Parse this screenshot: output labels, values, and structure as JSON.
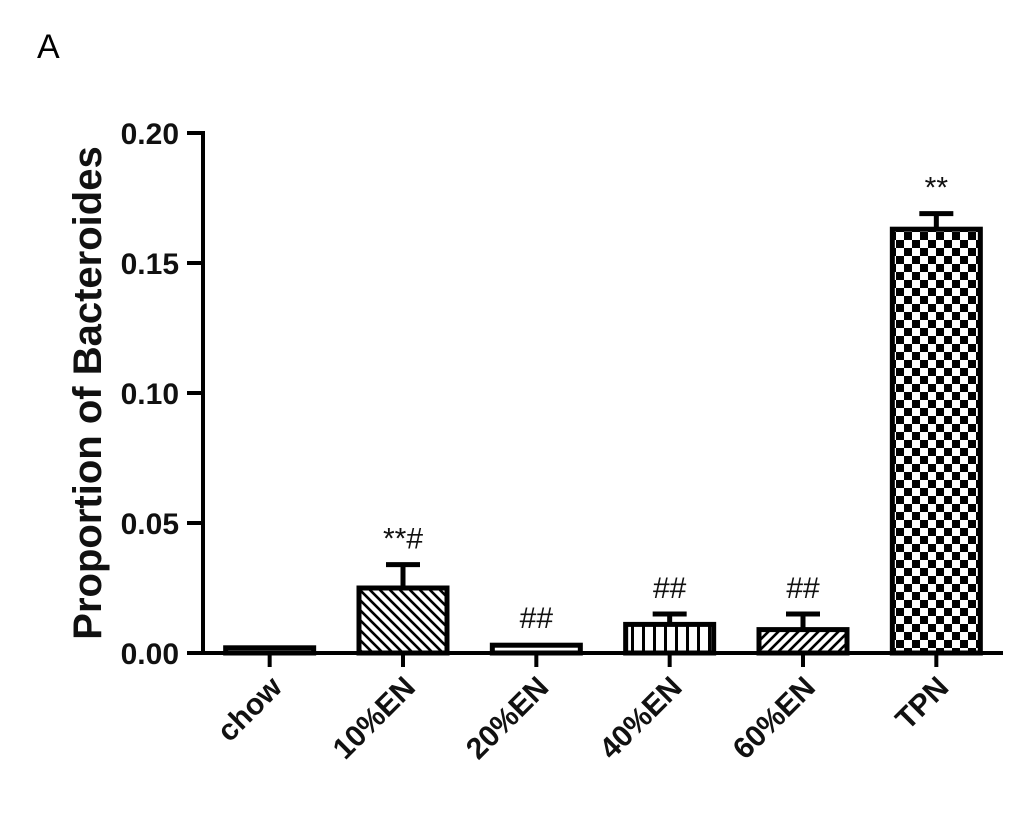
{
  "panel_label": "A",
  "chart_data": {
    "type": "bar",
    "title": "",
    "xlabel": "",
    "ylabel": "Proportion of Bacteroides",
    "ylim": [
      0,
      0.2
    ],
    "yticks": [
      "0.00",
      "0.05",
      "0.10",
      "0.15",
      "0.20"
    ],
    "categories": [
      "chow",
      "10%EN",
      "20%EN",
      "40%EN",
      "60%EN",
      "TPN"
    ],
    "values": [
      0.002,
      0.025,
      0.003,
      0.011,
      0.009,
      0.163
    ],
    "error": [
      0.0005,
      0.009,
      0.0005,
      0.004,
      0.006,
      0.006
    ],
    "annotations": [
      "",
      "**#",
      "##",
      "##",
      "##",
      "**"
    ],
    "patterns": [
      "solid",
      "diagonal-back",
      "solid",
      "vertical",
      "diagonal-forward",
      "checker"
    ],
    "grid": false,
    "legend": "none"
  }
}
